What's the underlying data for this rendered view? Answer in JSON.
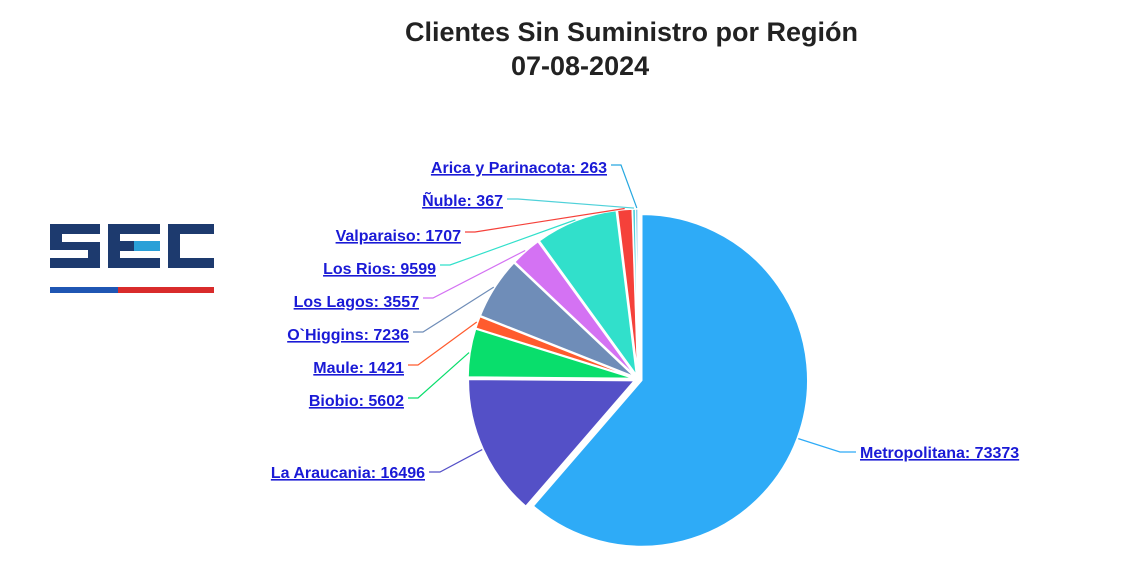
{
  "header": {
    "title": "Clientes Sin Suministro por Región",
    "subtitle": "07-08-2024"
  },
  "logo": {
    "text": "SEC",
    "colors": {
      "main": "#1d3a6e",
      "accent": "#2aa0d8",
      "stripe_red": "#d92b2b",
      "stripe_blue": "#1f56b3"
    }
  },
  "chart_data": {
    "type": "pie",
    "title": "Clientes Sin Suministro por Región",
    "subtitle": "07-08-2024",
    "start_angle_deg": 0,
    "slices": [
      {
        "name": "Metropolitana",
        "value": 73373,
        "label": "Metropolitana: 73373",
        "color": "#2eabf7"
      },
      {
        "name": "La Araucania",
        "value": 16496,
        "label": "La Araucania: 16496",
        "color": "#5450c7"
      },
      {
        "name": "Biobio",
        "value": 5602,
        "label": "Biobio: 5602",
        "color": "#09de6c"
      },
      {
        "name": "Maule",
        "value": 1421,
        "label": "Maule: 1421",
        "color": "#ff5b2e"
      },
      {
        "name": "O`Higgins",
        "value": 7236,
        "label": "O`Higgins: 7236",
        "color": "#6f8db8"
      },
      {
        "name": "Los Lagos",
        "value": 3557,
        "label": "Los Lagos: 3557",
        "color": "#d472f3"
      },
      {
        "name": "Los Rios",
        "value": 9599,
        "label": "Los Rios: 9599",
        "color": "#31e0cb"
      },
      {
        "name": "Valparaiso",
        "value": 1707,
        "label": "Valparaiso: 1707",
        "color": "#f5413a"
      },
      {
        "name": "Ñuble",
        "value": 367,
        "label": "Ñuble: 367",
        "color": "#4fd1d9"
      },
      {
        "name": "Arica y Parinacota",
        "value": 263,
        "label": "Arica y Parinacota: 263",
        "color": "#27a8e0"
      }
    ]
  }
}
